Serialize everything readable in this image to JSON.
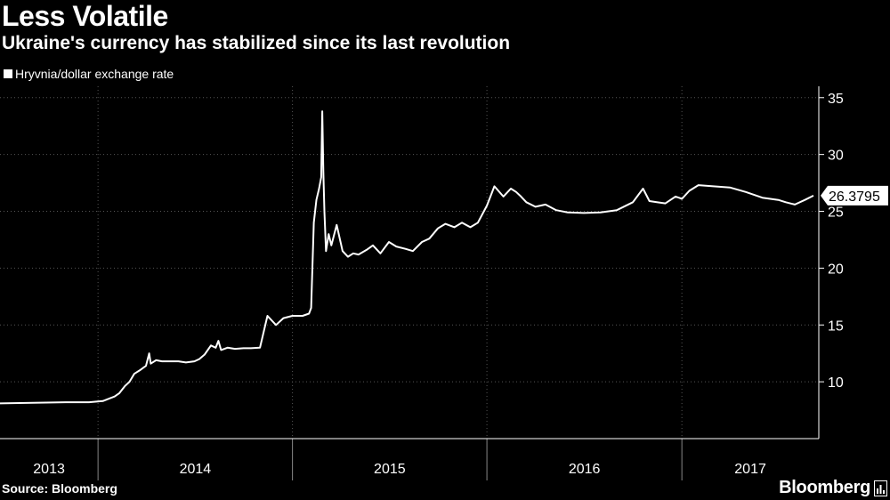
{
  "header": {
    "title": "Less Volatile",
    "subtitle": "Ukraine's currency has stabilized since its last revolution"
  },
  "footer": {
    "source": "Source: Bloomberg",
    "brand": "Bloomberg"
  },
  "icons": {
    "brand_mark": "bloomberg-chart-icon"
  },
  "colors": {
    "background": "#000000",
    "line": "#ffffff",
    "grid": "#555555"
  },
  "chart_data": {
    "type": "line",
    "title": "Less Volatile",
    "subtitle": "Ukraine's currency has stabilized since its last revolution",
    "xlabel": "",
    "ylabel": "",
    "ylim": [
      5,
      36
    ],
    "xlim": [
      "2013-07-01",
      "2017-09-15"
    ],
    "y_axis_side": "right",
    "yticks": [
      10,
      15,
      20,
      25,
      30,
      35
    ],
    "xtick_labels": [
      "2013",
      "2014",
      "2015",
      "2016",
      "2017"
    ],
    "year_boundaries": [
      "2014-01-01",
      "2015-01-01",
      "2016-01-01",
      "2017-01-01"
    ],
    "grid": true,
    "legend": {
      "position": "top-left",
      "entries": [
        "Hryvnia/dollar exchange rate"
      ]
    },
    "last_value_label": "26.3795",
    "series": [
      {
        "name": "Hryvnia/dollar exchange rate",
        "x": [
          "2013-07-01",
          "2013-09-01",
          "2013-11-01",
          "2013-12-15",
          "2014-01-10",
          "2014-02-01",
          "2014-02-10",
          "2014-02-20",
          "2014-03-01",
          "2014-03-10",
          "2014-03-20",
          "2014-04-01",
          "2014-04-07",
          "2014-04-10",
          "2014-04-20",
          "2014-05-01",
          "2014-05-15",
          "2014-06-01",
          "2014-06-15",
          "2014-07-01",
          "2014-07-10",
          "2014-07-20",
          "2014-08-01",
          "2014-08-10",
          "2014-08-15",
          "2014-08-20",
          "2014-09-01",
          "2014-09-15",
          "2014-10-01",
          "2014-10-15",
          "2014-11-01",
          "2014-11-15",
          "2014-12-01",
          "2014-12-15",
          "2015-01-01",
          "2015-01-20",
          "2015-02-01",
          "2015-02-05",
          "2015-02-10",
          "2015-02-15",
          "2015-02-20",
          "2015-02-24",
          "2015-02-26",
          "2015-02-28",
          "2015-03-02",
          "2015-03-05",
          "2015-03-10",
          "2015-03-15",
          "2015-03-25",
          "2015-04-05",
          "2015-04-15",
          "2015-04-25",
          "2015-05-05",
          "2015-05-20",
          "2015-06-01",
          "2015-06-15",
          "2015-07-01",
          "2015-07-15",
          "2015-08-01",
          "2015-08-15",
          "2015-09-01",
          "2015-09-15",
          "2015-10-01",
          "2015-10-15",
          "2015-11-01",
          "2015-11-15",
          "2015-12-01",
          "2015-12-15",
          "2016-01-01",
          "2016-01-15",
          "2016-02-01",
          "2016-02-15",
          "2016-02-25",
          "2016-03-05",
          "2016-03-15",
          "2016-04-01",
          "2016-04-20",
          "2016-05-10",
          "2016-06-01",
          "2016-07-01",
          "2016-08-01",
          "2016-09-01",
          "2016-10-01",
          "2016-10-20",
          "2016-11-01",
          "2016-11-15",
          "2016-12-01",
          "2016-12-20",
          "2017-01-01",
          "2017-01-15",
          "2017-02-01",
          "2017-03-01",
          "2017-04-01",
          "2017-05-01",
          "2017-06-01",
          "2017-07-01",
          "2017-07-15",
          "2017-08-01",
          "2017-08-20",
          "2017-09-05"
        ],
        "values": [
          8.1,
          8.15,
          8.2,
          8.2,
          8.3,
          8.7,
          9.0,
          9.6,
          10.0,
          10.7,
          11.0,
          11.4,
          12.5,
          11.6,
          11.9,
          11.8,
          11.8,
          11.8,
          11.7,
          11.8,
          12.0,
          12.4,
          13.2,
          13.0,
          13.6,
          12.8,
          13.0,
          12.9,
          12.95,
          12.95,
          13.0,
          15.8,
          15.0,
          15.6,
          15.8,
          15.8,
          16.0,
          16.5,
          24.0,
          26.0,
          27.0,
          28.0,
          33.8,
          28.5,
          25.0,
          21.5,
          23.0,
          22.0,
          23.8,
          21.5,
          21.0,
          21.3,
          21.2,
          21.6,
          22.0,
          21.3,
          22.3,
          21.9,
          21.7,
          21.5,
          22.3,
          22.6,
          23.5,
          23.9,
          23.6,
          24.0,
          23.6,
          24.0,
          25.5,
          27.2,
          26.3,
          27.0,
          26.7,
          26.3,
          25.8,
          25.4,
          25.6,
          25.1,
          24.9,
          24.85,
          24.9,
          25.1,
          25.8,
          27.0,
          25.9,
          25.8,
          25.7,
          26.3,
          26.1,
          26.8,
          27.3,
          27.2,
          27.1,
          26.7,
          26.2,
          26.0,
          25.8,
          25.6,
          26.0,
          26.3795
        ]
      }
    ]
  }
}
